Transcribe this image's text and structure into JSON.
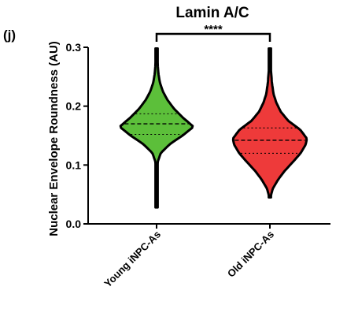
{
  "panel_label": "(j)",
  "chart_data": {
    "type": "violin",
    "title": "Lamin A/C",
    "xlabel": "",
    "ylabel": "Nuclear Envelope Roundness (AU)",
    "ylim": [
      0.0,
      0.3
    ],
    "yticks": [
      "0.0",
      "0.1",
      "0.2",
      "0.3"
    ],
    "grid": false,
    "legend": "none",
    "categories": [
      "Young iNPC-As",
      "Old iNPC-As"
    ],
    "series": [
      {
        "category": "Young iNPC-As",
        "color": "#5cbf3a",
        "min": 0.028,
        "max": 0.298,
        "q1": 0.152,
        "median": 0.17,
        "q3": 0.187,
        "density": [
          [
            0.028,
            0.004
          ],
          [
            0.06,
            0.006
          ],
          [
            0.09,
            0.012
          ],
          [
            0.105,
            0.03
          ],
          [
            0.12,
            0.11
          ],
          [
            0.135,
            0.35
          ],
          [
            0.15,
            0.7
          ],
          [
            0.165,
            1.0
          ],
          [
            0.18,
            0.72
          ],
          [
            0.195,
            0.48
          ],
          [
            0.21,
            0.3
          ],
          [
            0.225,
            0.17
          ],
          [
            0.24,
            0.09
          ],
          [
            0.255,
            0.05
          ],
          [
            0.27,
            0.032
          ],
          [
            0.285,
            0.024
          ],
          [
            0.298,
            0.012
          ]
        ]
      },
      {
        "category": "Old iNPC-As",
        "color": "#ee3a3a",
        "min": 0.045,
        "max": 0.298,
        "q1": 0.12,
        "median": 0.142,
        "q3": 0.163,
        "density": [
          [
            0.045,
            0.01
          ],
          [
            0.06,
            0.08
          ],
          [
            0.075,
            0.22
          ],
          [
            0.09,
            0.4
          ],
          [
            0.105,
            0.62
          ],
          [
            0.12,
            0.83
          ],
          [
            0.135,
            0.97
          ],
          [
            0.145,
            1.0
          ],
          [
            0.16,
            0.82
          ],
          [
            0.175,
            0.5
          ],
          [
            0.19,
            0.3
          ],
          [
            0.205,
            0.18
          ],
          [
            0.22,
            0.1
          ],
          [
            0.24,
            0.055
          ],
          [
            0.26,
            0.03
          ],
          [
            0.28,
            0.022
          ],
          [
            0.298,
            0.012
          ]
        ]
      }
    ],
    "annotations": [
      {
        "type": "significance",
        "text": "****",
        "between": [
          "Young iNPC-As",
          "Old iNPC-As"
        ]
      }
    ]
  }
}
